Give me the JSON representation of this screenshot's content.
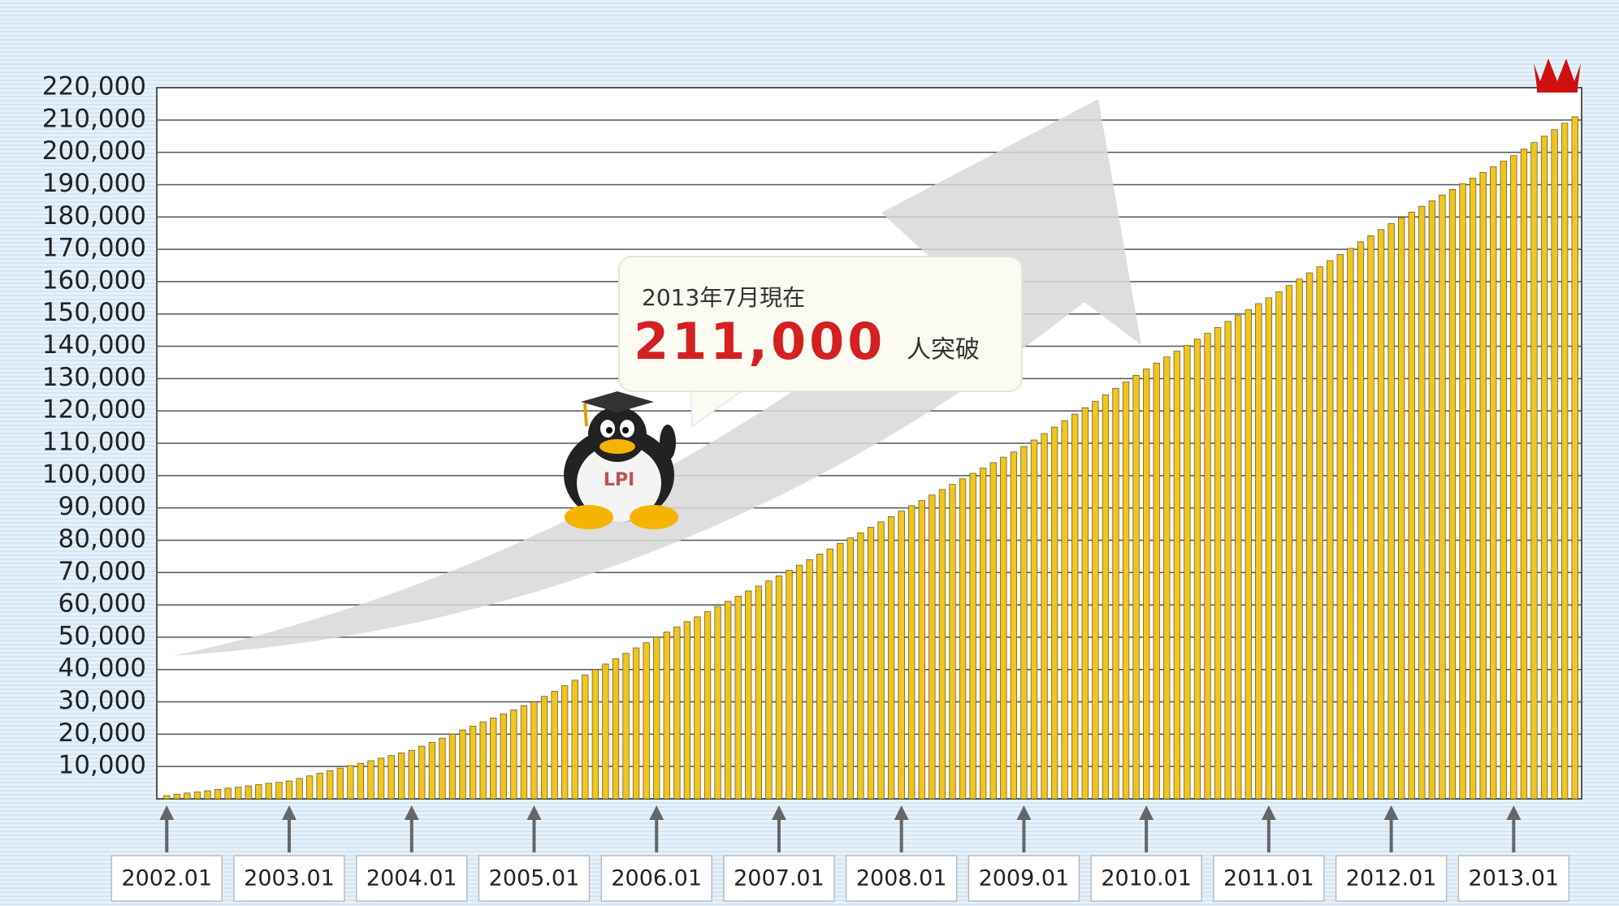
{
  "chart_data": {
    "type": "bar",
    "annotation": {
      "date": "2013年7月現在",
      "value": "211,000",
      "suffix": "人突破"
    },
    "color": "#f2c41e",
    "edge_color": "#6e6230",
    "grid": true,
    "ylim": [
      0,
      220000
    ],
    "yticks": [
      {
        "value": 10000,
        "label": "10,000"
      },
      {
        "value": 20000,
        "label": "20,000"
      },
      {
        "value": 30000,
        "label": "30,000"
      },
      {
        "value": 40000,
        "label": "40,000"
      },
      {
        "value": 50000,
        "label": "50,000"
      },
      {
        "value": 60000,
        "label": "60,000"
      },
      {
        "value": 70000,
        "label": "70,000"
      },
      {
        "value": 80000,
        "label": "80,000"
      },
      {
        "value": 90000,
        "label": "90,000"
      },
      {
        "value": 100000,
        "label": "100,000"
      },
      {
        "value": 110000,
        "label": "110,000"
      },
      {
        "value": 120000,
        "label": "120,000"
      },
      {
        "value": 130000,
        "label": "130,000"
      },
      {
        "value": 140000,
        "label": "140,000"
      },
      {
        "value": 150000,
        "label": "150,000"
      },
      {
        "value": 160000,
        "label": "160,000"
      },
      {
        "value": 170000,
        "label": "170,000"
      },
      {
        "value": 180000,
        "label": "180,000"
      },
      {
        "value": 190000,
        "label": "190,000"
      },
      {
        "value": 200000,
        "label": "200,000"
      },
      {
        "value": 210000,
        "label": "210,000"
      },
      {
        "value": 220000,
        "label": "220,000"
      }
    ],
    "categories": [
      "2002.01",
      null,
      null,
      null,
      null,
      null,
      null,
      null,
      null,
      null,
      null,
      null,
      "2003.01",
      null,
      null,
      null,
      null,
      null,
      null,
      null,
      null,
      null,
      null,
      null,
      "2004.01",
      null,
      null,
      null,
      null,
      null,
      null,
      null,
      null,
      null,
      null,
      null,
      "2005.01",
      null,
      null,
      null,
      null,
      null,
      null,
      null,
      null,
      null,
      null,
      null,
      "2006.01",
      null,
      null,
      null,
      null,
      null,
      null,
      null,
      null,
      null,
      null,
      null,
      "2007.01",
      null,
      null,
      null,
      null,
      null,
      null,
      null,
      null,
      null,
      null,
      null,
      "2008.01",
      null,
      null,
      null,
      null,
      null,
      null,
      null,
      null,
      null,
      null,
      null,
      "2009.01",
      null,
      null,
      null,
      null,
      null,
      null,
      null,
      null,
      null,
      null,
      null,
      "2010.01",
      null,
      null,
      null,
      null,
      null,
      null,
      null,
      null,
      null,
      null,
      null,
      "2011.01",
      null,
      null,
      null,
      null,
      null,
      null,
      null,
      null,
      null,
      null,
      null,
      "2012.01",
      null,
      null,
      null,
      null,
      null,
      null,
      null,
      null,
      null,
      null,
      null,
      "2013.01",
      null,
      null,
      null,
      null,
      null,
      null
    ],
    "values": [
      1000,
      1400,
      1800,
      2100,
      2500,
      2900,
      3300,
      3600,
      4000,
      4400,
      4800,
      5100,
      5500,
      6300,
      7100,
      7900,
      8700,
      9500,
      10300,
      11000,
      11800,
      12600,
      13400,
      14200,
      15000,
      16300,
      17500,
      18800,
      20000,
      21300,
      22500,
      23800,
      25000,
      26300,
      27500,
      28800,
      30000,
      31700,
      33300,
      35000,
      36700,
      38300,
      40000,
      41700,
      43300,
      45000,
      46700,
      48300,
      50000,
      51600,
      53200,
      54800,
      56300,
      57900,
      59500,
      61100,
      62700,
      64300,
      65800,
      67400,
      69000,
      70700,
      72300,
      74000,
      75700,
      77300,
      79000,
      80700,
      82300,
      84000,
      85700,
      87300,
      89000,
      90700,
      92300,
      94000,
      95700,
      97300,
      99000,
      100700,
      102300,
      104000,
      105700,
      107300,
      109000,
      111000,
      113000,
      115000,
      117000,
      119000,
      121000,
      123000,
      125000,
      127000,
      129000,
      131000,
      133000,
      134800,
      136700,
      138500,
      140300,
      142200,
      144000,
      145800,
      147700,
      149500,
      151300,
      153200,
      155000,
      156900,
      158800,
      160800,
      162700,
      164600,
      166500,
      168400,
      170300,
      172300,
      174200,
      176100,
      178000,
      179800,
      181500,
      183300,
      185000,
      186800,
      188500,
      190300,
      192000,
      193800,
      195500,
      197300,
      199000,
      201000,
      203000,
      205000,
      207000,
      209000,
      211000
    ]
  }
}
